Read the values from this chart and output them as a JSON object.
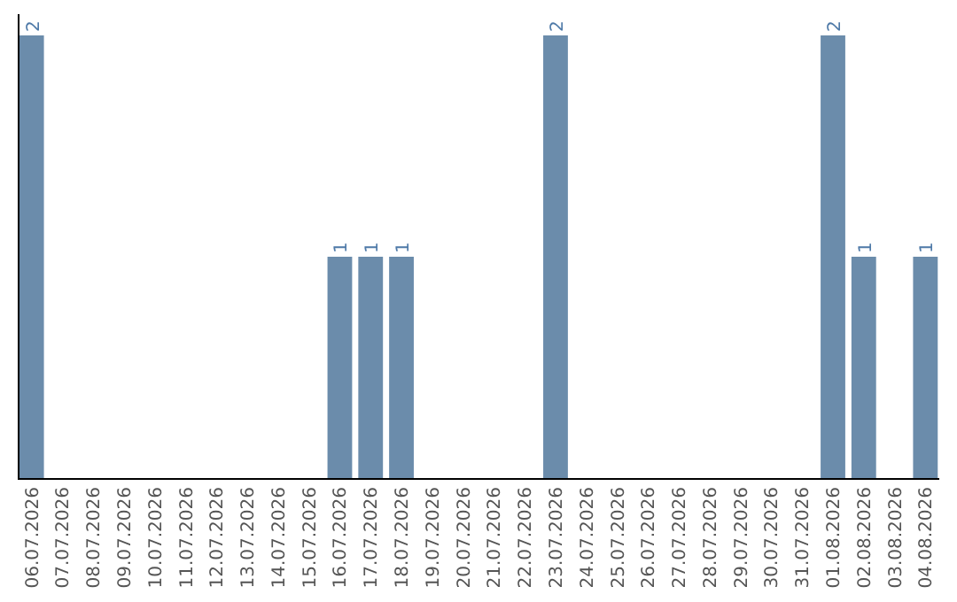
{
  "chart_data": {
    "type": "bar",
    "categories": [
      "06.07.2026",
      "07.07.2026",
      "08.07.2026",
      "09.07.2026",
      "10.07.2026",
      "11.07.2026",
      "12.07.2026",
      "13.07.2026",
      "14.07.2026",
      "15.07.2026",
      "16.07.2026",
      "17.07.2026",
      "18.07.2026",
      "19.07.2026",
      "20.07.2026",
      "21.07.2026",
      "22.07.2026",
      "23.07.2026",
      "24.07.2026",
      "25.07.2026",
      "26.07.2026",
      "27.07.2026",
      "28.07.2026",
      "29.07.2026",
      "30.07.2026",
      "31.07.2026",
      "01.08.2026",
      "02.08.2026",
      "03.08.2026",
      "04.08.2026"
    ],
    "values": [
      2,
      0,
      0,
      0,
      0,
      0,
      0,
      0,
      0,
      0,
      1,
      1,
      1,
      0,
      0,
      0,
      0,
      2,
      0,
      0,
      0,
      0,
      0,
      0,
      0,
      0,
      2,
      1,
      0,
      1
    ],
    "color": "#6b8cab",
    "value_labels": [
      "2",
      null,
      null,
      null,
      null,
      null,
      null,
      null,
      null,
      null,
      "1",
      "1",
      "1",
      null,
      null,
      null,
      null,
      "2",
      null,
      null,
      null,
      null,
      null,
      null,
      null,
      null,
      "2",
      "1",
      null,
      "1"
    ]
  }
}
